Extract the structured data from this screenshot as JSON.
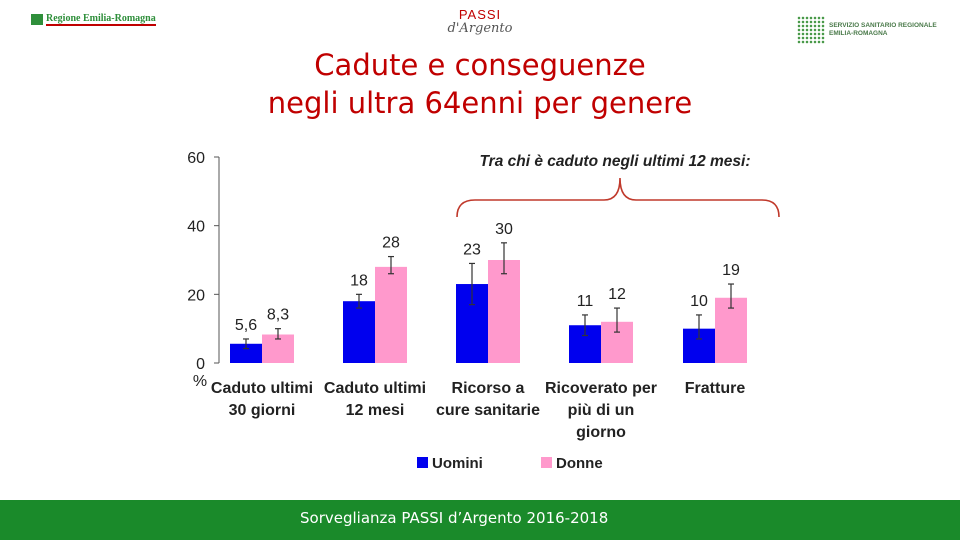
{
  "header": {
    "logo_left": "Regione Emilia-Romagna",
    "logo_center_top": "PASSI",
    "logo_center_bottom": "d'Argento",
    "logo_right_line1": "SERVIZIO SANITARIO REGIONALE",
    "logo_right_line2": "EMILIA-ROMAGNA"
  },
  "title_line1": "Cadute e conseguenze",
  "title_line2": "negli ultra 64enni per genere",
  "footer_text": "Sorveglianza PASSI d’Argento 2016-2018",
  "colors": {
    "uomini": "#0000ee",
    "donne": "#ff99cc",
    "title": "#c00000",
    "footer": "#1a8a2a"
  },
  "chart_data": {
    "type": "bar",
    "categories": [
      [
        "Caduto ultimi",
        "30 giorni"
      ],
      [
        "Caduto ultimi",
        "12 mesi"
      ],
      [
        "Ricorso a",
        "cure sanitarie"
      ],
      [
        "Ricoverato per",
        "più di un",
        "giorno"
      ],
      [
        "Fratture"
      ]
    ],
    "series": [
      {
        "name": "Uomini",
        "values": [
          5.6,
          18,
          23,
          11,
          10
        ],
        "labels": [
          "5,6",
          "18",
          "23",
          "11",
          "10"
        ],
        "err_low": [
          4.2,
          16,
          17,
          8,
          7
        ],
        "err_high": [
          7,
          20,
          29,
          14,
          14
        ]
      },
      {
        "name": "Donne",
        "values": [
          8.3,
          28,
          30,
          12,
          19
        ],
        "labels": [
          "8,3",
          "28",
          "30",
          "12",
          "19"
        ],
        "err_low": [
          7,
          26,
          26,
          9,
          16
        ],
        "err_high": [
          10,
          31,
          35,
          16,
          23
        ]
      }
    ],
    "ylim": [
      0,
      60
    ],
    "yticks": [
      "0",
      "20",
      "40",
      "60"
    ],
    "ylabel": "%",
    "annotation": "Tra chi è caduto negli ultimi 12 mesi:",
    "legend": "bottom-center",
    "grid": false
  }
}
